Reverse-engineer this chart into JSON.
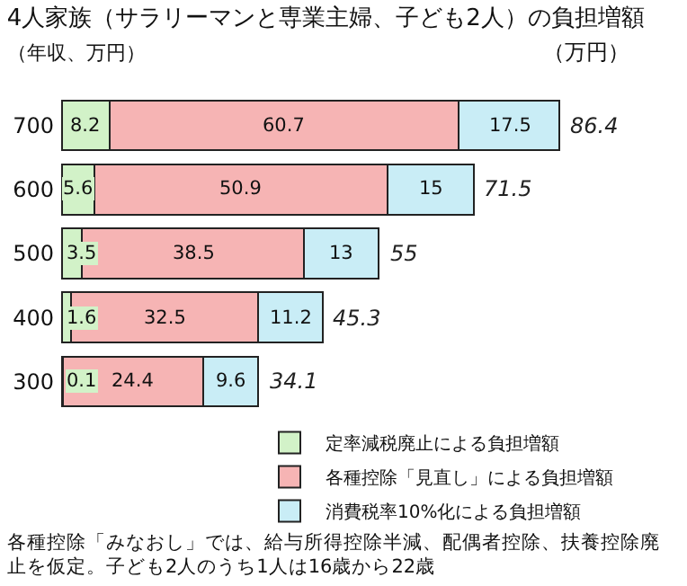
{
  "chart_data": {
    "type": "bar",
    "orientation": "horizontal",
    "stacked": true,
    "title": "4人家族（サラリーマンと専業主婦、子ども2人）の負担増額",
    "subtitle": "（万円）",
    "ylabel": "（年収、万円）",
    "categories": [
      "700",
      "600",
      "500",
      "400",
      "300"
    ],
    "series": [
      {
        "name": "定率減税廃止による負担増額",
        "color": "#d2f2c8",
        "values": [
          8.2,
          5.6,
          3.5,
          1.6,
          0.1
        ]
      },
      {
        "name": "各種控除「見直し」による負担増額",
        "color": "#f6b4b4",
        "values": [
          60.7,
          50.9,
          38.5,
          32.5,
          24.4
        ]
      },
      {
        "name": "消費税率10%化による負担増額",
        "color": "#c9edf6",
        "values": [
          17.5,
          15,
          13,
          11.2,
          9.6
        ]
      }
    ],
    "totals": [
      "86.4",
      "71.5",
      "55",
      "45.3",
      "34.1"
    ],
    "data_labels": true,
    "tick_labels": "y",
    "grid": false,
    "legend": "bottom right",
    "annotations": [
      "各種控除「みなおし」では、給与所得控除半減、配偶者控除、扶養控除廃止を仮定。子ども2人のうち1人は16歳から22歳"
    ]
  }
}
